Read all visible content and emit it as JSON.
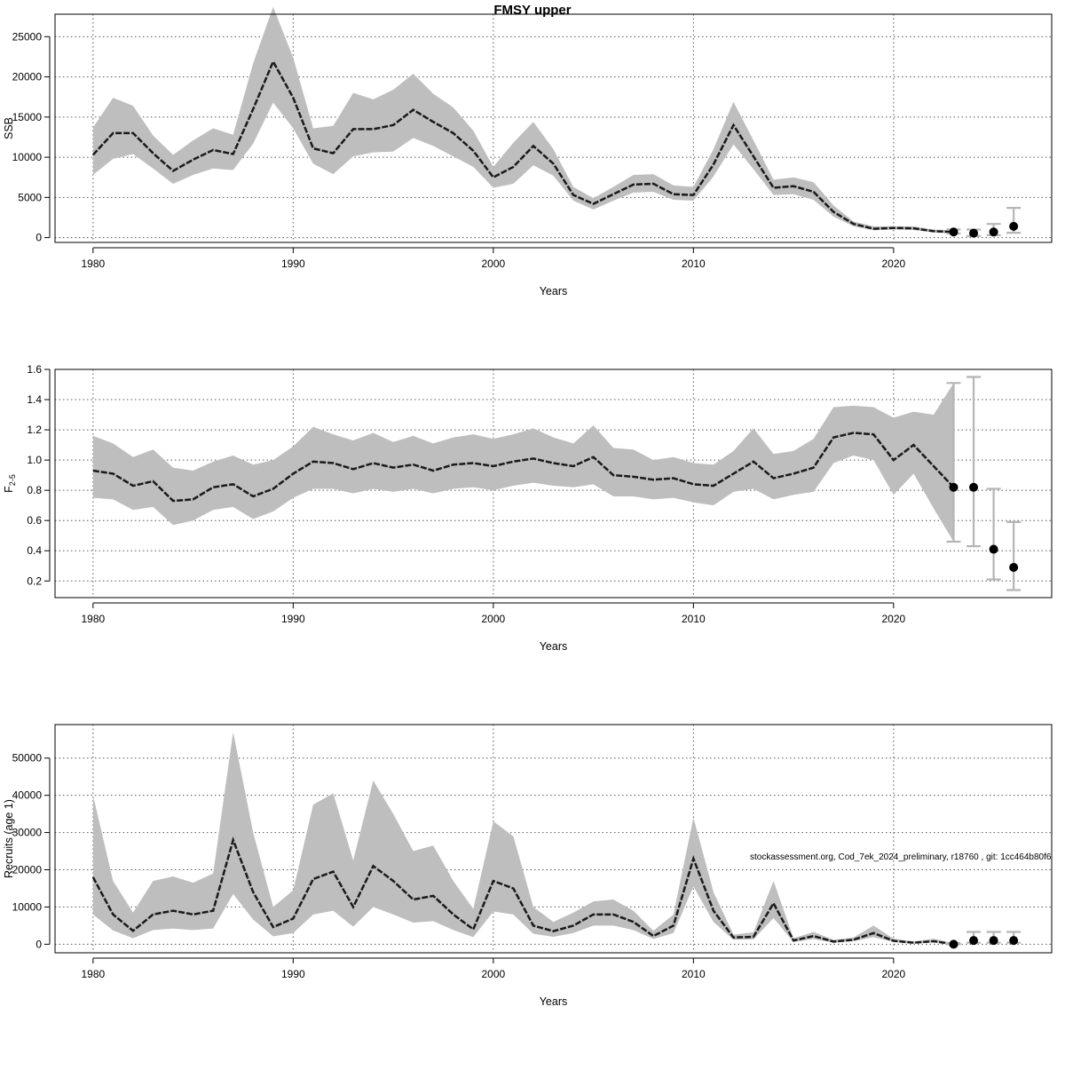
{
  "title": "FMSY upper",
  "credit": "stockassessment.org, Cod_7ek_2024_preliminary, r18760 , git: 1cc464b80f6",
  "chart_data": [
    {
      "type": "line",
      "ylabel": "SSB",
      "xlabel": "Years",
      "xlim": [
        1978.1,
        2027.9
      ],
      "ylim": [
        -600,
        27800
      ],
      "xticks": [
        1980,
        1990,
        2000,
        2010,
        2020
      ],
      "yticks": [
        0,
        5000,
        10000,
        15000,
        20000,
        25000
      ],
      "grid": true,
      "series": [
        {
          "x": [
            1980,
            1981,
            1982,
            1983,
            1984,
            1985,
            1986,
            1987,
            1988,
            1989,
            1990,
            1991,
            1992,
            1993,
            1994,
            1995,
            1996,
            1997,
            1998,
            1999,
            2000,
            2001,
            2002,
            2003,
            2004,
            2005,
            2006,
            2007,
            2008,
            2009,
            2010,
            2011,
            2012,
            2013,
            2014,
            2015,
            2016,
            2017,
            2018,
            2019,
            2020,
            2021,
            2022,
            2023
          ],
          "y": [
            10300,
            13000,
            13000,
            10500,
            8300,
            9700,
            10900,
            10400,
            16000,
            21900,
            17400,
            11100,
            10500,
            13500,
            13500,
            14000,
            15900,
            14400,
            13000,
            10800,
            7500,
            8800,
            11400,
            9200,
            5300,
            4200,
            5400,
            6600,
            6700,
            5400,
            5300,
            9100,
            14000,
            10100,
            6200,
            6400,
            5700,
            3200,
            1700,
            1100,
            1200,
            1150,
            800,
            700
          ],
          "upper": [
            13700,
            17400,
            16400,
            12700,
            10300,
            12100,
            13600,
            12800,
            21700,
            28700,
            22400,
            13600,
            13900,
            18000,
            17200,
            18400,
            20400,
            17900,
            16200,
            13300,
            8800,
            11800,
            14400,
            11000,
            6300,
            4900,
            6300,
            7800,
            7900,
            6500,
            6300,
            11000,
            16900,
            12100,
            7200,
            7500,
            6900,
            4000,
            2000,
            1400,
            1400,
            1400,
            1000,
            900
          ],
          "lower": [
            7800,
            9800,
            10400,
            8600,
            6700,
            7800,
            8600,
            8400,
            11700,
            16800,
            13600,
            9200,
            7900,
            10100,
            10600,
            10700,
            12400,
            11400,
            10100,
            8800,
            6200,
            6700,
            9000,
            7700,
            4600,
            3500,
            4600,
            5600,
            5700,
            4700,
            4600,
            7600,
            11600,
            8500,
            5300,
            5400,
            4700,
            2600,
            1400,
            900,
            1000,
            950,
            650,
            500
          ]
        }
      ],
      "forecast": {
        "x": [
          2023,
          2024,
          2025,
          2026
        ],
        "y": [
          700,
          550,
          700,
          1400
        ],
        "lo": [
          500,
          200,
          300,
          600
        ],
        "hi": [
          1000,
          1000,
          1700,
          3700
        ]
      }
    },
    {
      "type": "line",
      "ylabel": "F",
      "ylabel_sub": "2-5",
      "xlabel": "Years",
      "xlim": [
        1978.1,
        2027.9
      ],
      "ylim": [
        0.09,
        1.6
      ],
      "xticks": [
        1980,
        1990,
        2000,
        2010,
        2020
      ],
      "yticks": [
        0.2,
        0.4,
        0.6,
        0.8,
        1.0,
        1.2,
        1.4,
        1.6
      ],
      "ytick_labels": [
        "0.2",
        "0.4",
        "0.6",
        "0.8",
        "1.0",
        "1.2",
        "1.4",
        "1.6"
      ],
      "grid": true,
      "series": [
        {
          "x": [
            1980,
            1981,
            1982,
            1983,
            1984,
            1985,
            1986,
            1987,
            1988,
            1989,
            1990,
            1991,
            1992,
            1993,
            1994,
            1995,
            1996,
            1997,
            1998,
            1999,
            2000,
            2001,
            2002,
            2003,
            2004,
            2005,
            2006,
            2007,
            2008,
            2009,
            2010,
            2011,
            2012,
            2013,
            2014,
            2015,
            2016,
            2017,
            2018,
            2019,
            2020,
            2021,
            2022,
            2023
          ],
          "y": [
            0.93,
            0.91,
            0.83,
            0.86,
            0.73,
            0.74,
            0.82,
            0.84,
            0.76,
            0.81,
            0.91,
            0.99,
            0.98,
            0.94,
            0.98,
            0.95,
            0.97,
            0.93,
            0.97,
            0.98,
            0.96,
            0.99,
            1.01,
            0.98,
            0.96,
            1.02,
            0.9,
            0.89,
            0.87,
            0.88,
            0.84,
            0.83,
            0.91,
            0.99,
            0.88,
            0.91,
            0.95,
            1.15,
            1.18,
            1.17,
            1.0,
            1.1,
            0.96,
            0.82
          ],
          "upper": [
            1.16,
            1.11,
            1.02,
            1.07,
            0.95,
            0.93,
            0.99,
            1.03,
            0.97,
            1.0,
            1.09,
            1.22,
            1.17,
            1.13,
            1.18,
            1.12,
            1.16,
            1.11,
            1.15,
            1.17,
            1.14,
            1.17,
            1.21,
            1.15,
            1.11,
            1.23,
            1.08,
            1.07,
            1.0,
            1.02,
            0.98,
            0.97,
            1.06,
            1.21,
            1.04,
            1.06,
            1.14,
            1.35,
            1.36,
            1.35,
            1.28,
            1.32,
            1.3,
            1.51
          ],
          "lower": [
            0.75,
            0.74,
            0.67,
            0.69,
            0.57,
            0.6,
            0.67,
            0.69,
            0.61,
            0.66,
            0.75,
            0.81,
            0.81,
            0.78,
            0.81,
            0.79,
            0.81,
            0.78,
            0.81,
            0.82,
            0.8,
            0.83,
            0.85,
            0.83,
            0.82,
            0.84,
            0.76,
            0.76,
            0.74,
            0.75,
            0.72,
            0.7,
            0.79,
            0.81,
            0.74,
            0.77,
            0.79,
            0.98,
            1.03,
            1.0,
            0.77,
            0.91,
            0.68,
            0.46
          ]
        }
      ],
      "forecast": {
        "x": [
          2023,
          2024,
          2025,
          2026
        ],
        "y": [
          0.82,
          0.82,
          0.41,
          0.29
        ],
        "lo": [
          0.46,
          0.43,
          0.21,
          0.14
        ],
        "hi": [
          1.51,
          1.55,
          0.81,
          0.59
        ]
      }
    },
    {
      "type": "line",
      "ylabel": "Recruits (age 1)",
      "xlabel": "Years",
      "xlim": [
        1978.1,
        2027.9
      ],
      "ylim": [
        -2300,
        59000
      ],
      "xticks": [
        1980,
        1990,
        2000,
        2010,
        2020
      ],
      "yticks": [
        0,
        10000,
        20000,
        30000,
        40000,
        50000
      ],
      "grid": true,
      "series": [
        {
          "x": [
            1980,
            1981,
            1982,
            1983,
            1984,
            1985,
            1986,
            1987,
            1988,
            1989,
            1990,
            1991,
            1992,
            1993,
            1994,
            1995,
            1996,
            1997,
            1998,
            1999,
            2000,
            2001,
            2002,
            2003,
            2004,
            2005,
            2006,
            2007,
            2008,
            2009,
            2010,
            2011,
            2012,
            2013,
            2014,
            2015,
            2016,
            2017,
            2018,
            2019,
            2020,
            2021,
            2022,
            2023
          ],
          "y": [
            18000,
            8000,
            3600,
            8000,
            9000,
            8000,
            9000,
            28000,
            14000,
            4600,
            6900,
            17500,
            19500,
            10000,
            21000,
            17000,
            12000,
            13000,
            8000,
            4000,
            17000,
            15000,
            5000,
            3500,
            5000,
            8000,
            8000,
            6000,
            2200,
            5000,
            23000,
            9000,
            1800,
            2000,
            11000,
            1000,
            2200,
            700,
            1200,
            3000,
            900,
            400,
            800,
            0
          ],
          "upper": [
            40000,
            17000,
            8500,
            17000,
            18200,
            16500,
            19000,
            57000,
            30000,
            10000,
            14500,
            37500,
            40500,
            22500,
            44000,
            35000,
            25000,
            26500,
            17000,
            9500,
            33000,
            29000,
            10000,
            6000,
            8500,
            11500,
            12000,
            9000,
            3600,
            8000,
            34000,
            14000,
            2600,
            3200,
            17000,
            1600,
            3300,
            1200,
            1800,
            5000,
            1500,
            700,
            1500,
            300
          ],
          "lower": [
            8000,
            3700,
            1600,
            3800,
            4200,
            3800,
            4200,
            13500,
            6600,
            2100,
            3000,
            8000,
            9000,
            4700,
            10000,
            8000,
            5800,
            6200,
            3800,
            1900,
            8800,
            8000,
            2800,
            2000,
            3000,
            5000,
            5000,
            3800,
            1400,
            3000,
            15500,
            6000,
            1200,
            1300,
            7000,
            600,
            1400,
            400,
            800,
            1900,
            600,
            200,
            500,
            0
          ]
        }
      ],
      "forecast": {
        "x": [
          2023,
          2024,
          2025,
          2026
        ],
        "y": [
          0,
          1000,
          1000,
          1000
        ],
        "lo": [
          0,
          400,
          400,
          400
        ],
        "hi": [
          300,
          3300,
          3300,
          3300
        ]
      }
    }
  ]
}
